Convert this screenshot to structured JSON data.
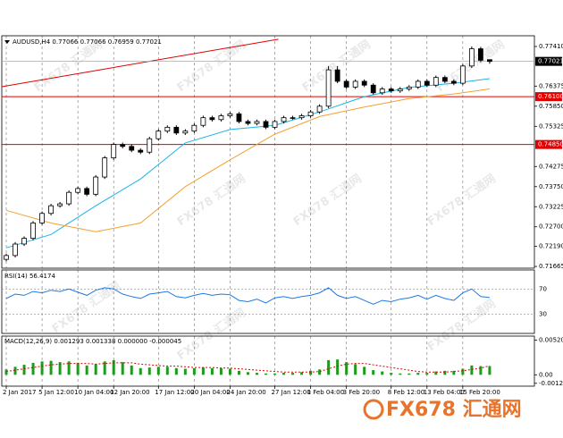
{
  "chart_data": [
    {
      "type": "candlestick",
      "title": "AUDUSD,H4 0.77066 0.77066 0.76959 0.77021",
      "open": [
        0.7185,
        0.7195,
        0.7225,
        0.724,
        0.728,
        0.7305,
        0.7325,
        0.733,
        0.736,
        0.737,
        0.7355,
        0.74,
        0.745,
        0.7485,
        0.748,
        0.747,
        0.7465,
        0.75,
        0.752,
        0.753,
        0.7515,
        0.752,
        0.7535,
        0.7555,
        0.755,
        0.756,
        0.7565,
        0.7545,
        0.754,
        0.7545,
        0.753,
        0.7545,
        0.7555,
        0.7555,
        0.756,
        0.757,
        0.7585,
        0.768,
        0.765,
        0.7635,
        0.765,
        0.764,
        0.762,
        0.763,
        0.7625,
        0.763,
        0.7635,
        0.765,
        0.764,
        0.766,
        0.765,
        0.7645,
        0.769,
        0.7735,
        0.77066
      ],
      "high": [
        0.72,
        0.723,
        0.7245,
        0.7285,
        0.731,
        0.733,
        0.7335,
        0.7365,
        0.7375,
        0.7375,
        0.7405,
        0.7455,
        0.749,
        0.749,
        0.7485,
        0.7475,
        0.7505,
        0.7525,
        0.7535,
        0.7535,
        0.7525,
        0.754,
        0.756,
        0.756,
        0.7565,
        0.757,
        0.757,
        0.755,
        0.755,
        0.755,
        0.755,
        0.756,
        0.756,
        0.7565,
        0.7575,
        0.759,
        0.769,
        0.769,
        0.7655,
        0.7655,
        0.7655,
        0.7645,
        0.7635,
        0.7635,
        0.7635,
        0.764,
        0.7655,
        0.7655,
        0.7665,
        0.7665,
        0.7655,
        0.7695,
        0.7741,
        0.774,
        0.77066
      ],
      "low": [
        0.718,
        0.719,
        0.722,
        0.7235,
        0.7275,
        0.73,
        0.732,
        0.7325,
        0.7355,
        0.735,
        0.735,
        0.7395,
        0.7445,
        0.7475,
        0.7465,
        0.746,
        0.746,
        0.7495,
        0.7515,
        0.751,
        0.751,
        0.7515,
        0.753,
        0.7545,
        0.7545,
        0.7555,
        0.754,
        0.7535,
        0.7535,
        0.7525,
        0.7525,
        0.754,
        0.755,
        0.755,
        0.7555,
        0.7565,
        0.758,
        0.7645,
        0.763,
        0.763,
        0.7635,
        0.7615,
        0.7615,
        0.762,
        0.762,
        0.7625,
        0.763,
        0.7635,
        0.7635,
        0.7645,
        0.764,
        0.764,
        0.7685,
        0.77,
        0.76959
      ],
      "close": [
        0.7195,
        0.7225,
        0.724,
        0.728,
        0.7305,
        0.7325,
        0.733,
        0.736,
        0.737,
        0.7355,
        0.74,
        0.745,
        0.7485,
        0.748,
        0.747,
        0.7465,
        0.75,
        0.752,
        0.753,
        0.7515,
        0.752,
        0.7535,
        0.7555,
        0.755,
        0.756,
        0.7565,
        0.7545,
        0.754,
        0.7545,
        0.753,
        0.7545,
        0.7555,
        0.7555,
        0.756,
        0.757,
        0.7585,
        0.768,
        0.765,
        0.7635,
        0.765,
        0.764,
        0.762,
        0.763,
        0.7625,
        0.763,
        0.7635,
        0.765,
        0.764,
        0.766,
        0.765,
        0.7645,
        0.769,
        0.7735,
        0.7705,
        0.77021
      ],
      "bull_color": "#ffffff",
      "bear_color": "#000000",
      "xlim": [
        -0.5,
        59
      ],
      "ylim": [
        0.7162,
        0.7769
      ],
      "yticks": [
        {
          "value": 0.7741,
          "label": "0.77410"
        },
        0.76375,
        {
          "value": 0.7585,
          "label": "0.75850"
        },
        0.75325,
        0.74275,
        {
          "value": 0.7375,
          "label": "0.73750"
        },
        0.73225,
        {
          "value": 0.727,
          "label": "0.72700"
        },
        {
          "value": 0.7219,
          "label": "0.72190"
        },
        0.71665
      ],
      "xticks": [
        {
          "value": 0,
          "label": "2 Jan 2017"
        },
        {
          "value": 4,
          "label": "5 Jan 12:00"
        },
        {
          "value": 8,
          "label": "10 Jan 04:00"
        },
        {
          "value": 12,
          "label": "12 Jan 20:00"
        },
        {
          "value": 17,
          "label": "17 Jan 12:00"
        },
        {
          "value": 21,
          "label": "20 Jan 04:00"
        },
        {
          "value": 25,
          "label": "24 Jan 20:00"
        },
        {
          "value": 30,
          "label": "27 Jan 12:00"
        },
        {
          "value": 34,
          "label": "1 Feb 04:00"
        },
        {
          "value": 38,
          "label": "3 Feb 20:00"
        },
        {
          "value": 43,
          "label": "8 Feb 12:00"
        },
        {
          "value": 47,
          "label": "13 Feb 04:00"
        },
        {
          "value": 51,
          "label": "15 Feb 20:00"
        }
      ],
      "lines": [
        {
          "x": [
            0,
            5,
            10,
            15,
            20,
            25,
            30,
            35,
            40,
            45,
            50,
            54
          ],
          "values": [
            0.7215,
            0.725,
            0.7325,
            0.7395,
            0.7489,
            0.7524,
            0.7535,
            0.757,
            0.761,
            0.7634,
            0.7645,
            0.7657
          ],
          "color": "#1ab4e8"
        },
        {
          "x": [
            0,
            5,
            10,
            15,
            20,
            25,
            30,
            35,
            40,
            45,
            50,
            54
          ],
          "values": [
            0.7313,
            0.728,
            0.7257,
            0.728,
            0.7375,
            0.7445,
            0.7512,
            0.7558,
            0.7583,
            0.7605,
            0.7617,
            0.763
          ],
          "color": "#f5a030"
        }
      ],
      "trendline": {
        "x": [
          -0.5,
          30.4
        ],
        "values": [
          0.7636,
          0.776
        ],
        "color": "#e00000"
      },
      "levels": [
        {
          "value": 0.761,
          "label": "0.76100",
          "color": "#e00000"
        },
        {
          "value": 0.7485,
          "label": "0.74850",
          "color": "#e00000"
        }
      ],
      "current": {
        "value": 0.77021,
        "label": "0.77021",
        "color": "#000000"
      },
      "grid": true
    },
    {
      "type": "line",
      "title": "RSI(14) 56.4174",
      "values": [
        55,
        62,
        60,
        66,
        64,
        68,
        66,
        70,
        65,
        60,
        68,
        72,
        70,
        62,
        58,
        55,
        62,
        64,
        66,
        58,
        56,
        60,
        63,
        60,
        62,
        61,
        52,
        50,
        54,
        48,
        56,
        58,
        55,
        58,
        60,
        64,
        72,
        60,
        55,
        58,
        52,
        46,
        52,
        50,
        54,
        56,
        60,
        54,
        60,
        55,
        52,
        64,
        70,
        58,
        56.42
      ],
      "color": "#1e78e6",
      "ylim": [
        0,
        100
      ],
      "yticks": [
        70,
        30
      ]
    },
    {
      "type": "macd",
      "title": "MACD(12,26,9) 0.001293 0.001338 0.000000 -0.000045",
      "histogram": {
        "values": [
          0.0008,
          0.0012,
          0.0015,
          0.0018,
          0.002,
          0.0021,
          0.0019,
          0.002,
          0.0018,
          0.0014,
          0.0016,
          0.002,
          0.0022,
          0.0019,
          0.0014,
          0.001,
          0.0011,
          0.0012,
          0.0012,
          0.001,
          0.0009,
          0.001,
          0.0011,
          0.001,
          0.001,
          0.0009,
          0.0006,
          0.0004,
          0.0003,
          0.0002,
          0.0002,
          0.0003,
          0.0003,
          0.0004,
          0.0006,
          0.0008,
          0.0022,
          0.0023,
          0.0019,
          0.0016,
          0.0012,
          0.0007,
          0.0005,
          0.0003,
          0.0002,
          0.0002,
          0.0003,
          0.0003,
          0.0005,
          0.0006,
          0.0006,
          0.0009,
          0.0014,
          0.0013,
          0.001293
        ],
        "color": "#1f9a1f"
      },
      "signal": {
        "values": [
          0.0005,
          0.0007,
          0.0009,
          0.0011,
          0.0013,
          0.0015,
          0.0016,
          0.0017,
          0.0017,
          0.0017,
          0.0016,
          0.0017,
          0.0018,
          0.0018,
          0.0018,
          0.0016,
          0.0015,
          0.0014,
          0.0013,
          0.0013,
          0.0012,
          0.0011,
          0.0011,
          0.0011,
          0.001,
          0.001,
          0.0009,
          0.0008,
          0.0007,
          0.0006,
          0.0005,
          0.0004,
          0.0004,
          0.0004,
          0.0004,
          0.0005,
          0.0009,
          0.0013,
          0.0016,
          0.0017,
          0.0017,
          0.0015,
          0.0013,
          0.0011,
          0.0009,
          0.0007,
          0.0005,
          0.0004,
          0.0004,
          0.0004,
          0.0005,
          0.0006,
          0.0008,
          0.001,
          0.001338
        ],
        "color": "#e00000"
      },
      "ylim": [
        -0.0017,
        0.0058
      ],
      "yticks": [
        0.005209,
        {
          "value": 0,
          "label": "0.00"
        },
        -0.001275
      ]
    }
  ],
  "watermark": "FX678 汇通网"
}
